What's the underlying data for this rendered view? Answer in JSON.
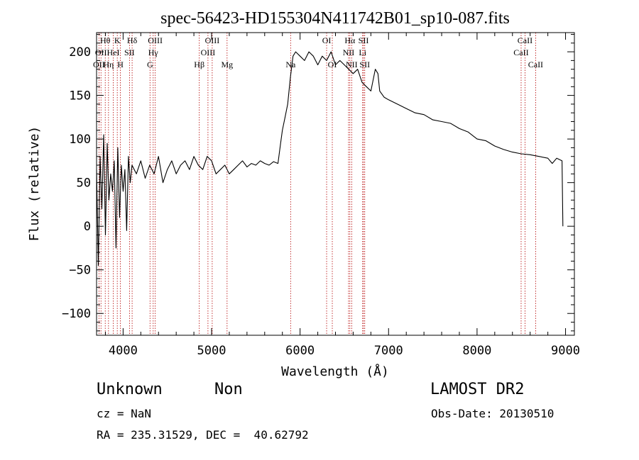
{
  "chart_data": {
    "type": "line",
    "title": "spec-56423-HD155304N411742B01_sp10-087.fits",
    "xlabel": "Wavelength (Å)",
    "ylabel": "Flux (relative)",
    "xlim": [
      3700,
      9100
    ],
    "ylim": [
      -125,
      222
    ],
    "x_ticks": [
      4000,
      5000,
      6000,
      7000,
      8000,
      9000
    ],
    "y_ticks": [
      -100,
      -50,
      0,
      50,
      100,
      150,
      200
    ],
    "grid": false,
    "series": [
      {
        "x": [
          3700,
          3720,
          3740,
          3760,
          3780,
          3800,
          3820,
          3840,
          3860,
          3880,
          3900,
          3920,
          3940,
          3960,
          3980,
          4000,
          4020,
          4040,
          4060,
          4080,
          4100,
          4150,
          4200,
          4250,
          4300,
          4350,
          4400,
          4450,
          4500,
          4550,
          4600,
          4650,
          4700,
          4750,
          4800,
          4850,
          4900,
          4950,
          5000,
          5050,
          5100,
          5150,
          5200,
          5250,
          5300,
          5350,
          5400,
          5450,
          5500,
          5550,
          5600,
          5650,
          5700,
          5750,
          5780,
          5800,
          5830,
          5860,
          5890,
          5920,
          5950,
          6000,
          6050,
          6100,
          6150,
          6200,
          6250,
          6300,
          6350,
          6400,
          6450,
          6500,
          6550,
          6600,
          6650,
          6700,
          6750,
          6800,
          6850,
          6880,
          6900,
          6950,
          7000,
          7100,
          7200,
          7300,
          7400,
          7500,
          7600,
          7700,
          7800,
          7900,
          8000,
          8100,
          8200,
          8300,
          8400,
          8500,
          8600,
          8700,
          8800,
          8850,
          8900,
          8960,
          8970
        ],
        "y": [
          65,
          -45,
          80,
          20,
          105,
          -10,
          95,
          30,
          60,
          40,
          75,
          -25,
          90,
          10,
          70,
          40,
          65,
          -5,
          80,
          50,
          70,
          60,
          75,
          55,
          70,
          60,
          80,
          50,
          65,
          75,
          60,
          70,
          75,
          65,
          80,
          70,
          65,
          80,
          75,
          60,
          65,
          70,
          60,
          65,
          70,
          75,
          68,
          72,
          70,
          75,
          72,
          70,
          74,
          72,
          95,
          110,
          125,
          140,
          170,
          195,
          200,
          195,
          190,
          200,
          195,
          185,
          195,
          190,
          200,
          185,
          190,
          185,
          180,
          175,
          180,
          165,
          160,
          155,
          180,
          175,
          155,
          148,
          145,
          140,
          135,
          130,
          128,
          122,
          120,
          118,
          112,
          108,
          100,
          98,
          92,
          88,
          85,
          83,
          82,
          80,
          78,
          72,
          78,
          75,
          0
        ]
      }
    ],
    "lines": [
      {
        "x": 3727,
        "label": "OII",
        "row": 2
      },
      {
        "x": 3750,
        "label": "OII",
        "row": 1
      },
      {
        "x": 3798,
        "label": "Hθ",
        "row": 0
      },
      {
        "x": 3835,
        "label": "Hη",
        "row": 2
      },
      {
        "x": 3889,
        "label": "HeI",
        "row": 1
      },
      {
        "x": 3934,
        "label": "K",
        "row": 0
      },
      {
        "x": 3969,
        "label": "H",
        "row": 2
      },
      {
        "x": 4072,
        "label": "SII",
        "row": 1
      },
      {
        "x": 4102,
        "label": "Hδ",
        "row": 0
      },
      {
        "x": 4304,
        "label": "G",
        "row": 2
      },
      {
        "x": 4340,
        "label": "Hγ",
        "row": 1
      },
      {
        "x": 4363,
        "label": "OIII",
        "row": 0
      },
      {
        "x": 4861,
        "label": "Hβ",
        "row": 2
      },
      {
        "x": 4959,
        "label": "OIII",
        "row": 1
      },
      {
        "x": 5007,
        "label": "OIII",
        "row": 0
      },
      {
        "x": 5175,
        "label": "Mg",
        "row": 2
      },
      {
        "x": 5893,
        "label": "Na",
        "row": 2
      },
      {
        "x": 6300,
        "label": "OI",
        "row": 0
      },
      {
        "x": 6364,
        "label": "OI",
        "row": 2
      },
      {
        "x": 6548,
        "label": "NII",
        "row": 1
      },
      {
        "x": 6563,
        "label": "Hα",
        "row": 0
      },
      {
        "x": 6583,
        "label": "NII",
        "row": 2
      },
      {
        "x": 6707,
        "label": "Li",
        "row": 1
      },
      {
        "x": 6717,
        "label": "SII",
        "row": 0
      },
      {
        "x": 6731,
        "label": "SII",
        "row": 2
      },
      {
        "x": 8498,
        "label": "CaII",
        "row": 1
      },
      {
        "x": 8542,
        "label": "CaII",
        "row": 0
      },
      {
        "x": 8662,
        "label": "CaII",
        "row": 2
      }
    ]
  },
  "info": {
    "class": "Unknown",
    "subclass": "Non",
    "survey": "LAMOST DR2",
    "cz": "cz = NaN",
    "obs_date": "Obs-Date: 20130510",
    "coords": "RA = 235.31529, DEC =  40.62792"
  }
}
